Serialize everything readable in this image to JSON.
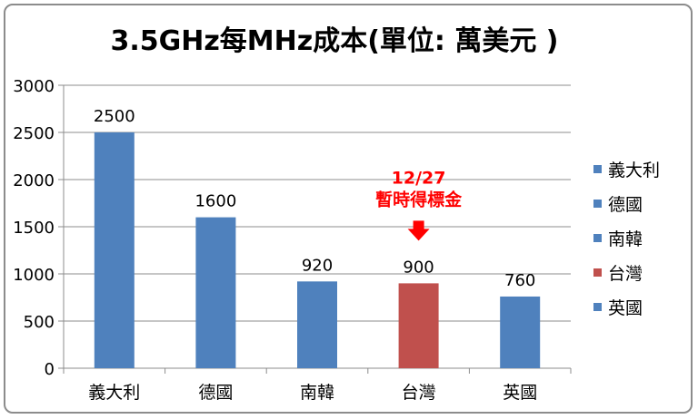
{
  "chart_data": {
    "type": "bar",
    "title": "3.5GHz每MHz成本(單位: 萬美元 )",
    "xlabel": "",
    "ylabel": "",
    "ylim": [
      0,
      3000
    ],
    "yticks": [
      0,
      500,
      1000,
      1500,
      2000,
      2500,
      3000
    ],
    "grid": true,
    "legend_position": "right",
    "categories": [
      "義大利",
      "德國",
      "南韓",
      "台灣",
      "英國"
    ],
    "values": [
      2500,
      1600,
      920,
      900,
      760
    ],
    "data_labels": [
      "2500",
      "1600",
      "920",
      "900",
      "760"
    ],
    "colors": [
      "#4f81bd",
      "#4f81bd",
      "#4f81bd",
      "#c0504d",
      "#4f81bd"
    ],
    "legend": [
      "義大利",
      "德國",
      "南韓",
      "台灣",
      "英國"
    ],
    "annotation": {
      "category": "台灣",
      "lines": [
        "12/27",
        "暫時得標金"
      ],
      "color": "#ff0000",
      "icon": "down-arrow-icon"
    }
  }
}
